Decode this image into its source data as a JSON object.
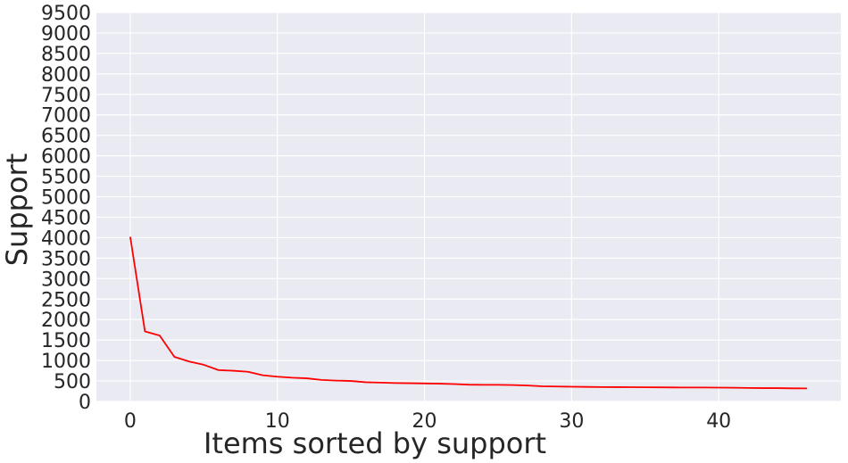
{
  "chart_data": {
    "type": "line",
    "title": "",
    "xlabel": "Items sorted by support",
    "ylabel": "Support",
    "xlim": [
      -2.3,
      48.3
    ],
    "ylim": [
      0,
      9500
    ],
    "x_ticks": [
      0,
      10,
      20,
      30,
      40
    ],
    "y_ticks": [
      0,
      500,
      1000,
      1500,
      2000,
      2500,
      3000,
      3500,
      4000,
      4500,
      5000,
      5500,
      6000,
      6500,
      7000,
      7500,
      8000,
      8500,
      9000,
      9500
    ],
    "grid": true,
    "legend": "none",
    "background_color": "#eaeaf2",
    "grid_color": "#ffffff",
    "series": [
      {
        "color": "#ff0000",
        "x": [
          0,
          1,
          2,
          3,
          4,
          5,
          6,
          7,
          8,
          9,
          10,
          11,
          12,
          13,
          14,
          15,
          16,
          17,
          18,
          19,
          20,
          21,
          22,
          23,
          24,
          25,
          26,
          27,
          28,
          29,
          30,
          31,
          32,
          33,
          34,
          35,
          36,
          37,
          38,
          39,
          40,
          41,
          42,
          43,
          44,
          45,
          46
        ],
        "values": [
          4020,
          1710,
          1610,
          1090,
          975,
          895,
          765,
          750,
          725,
          640,
          605,
          580,
          565,
          525,
          510,
          500,
          470,
          460,
          450,
          445,
          440,
          435,
          425,
          410,
          405,
          405,
          400,
          390,
          370,
          365,
          360,
          355,
          352,
          350,
          348,
          346,
          344,
          342,
          340,
          340,
          338,
          335,
          330,
          325,
          325,
          320,
          318
        ]
      }
    ]
  }
}
